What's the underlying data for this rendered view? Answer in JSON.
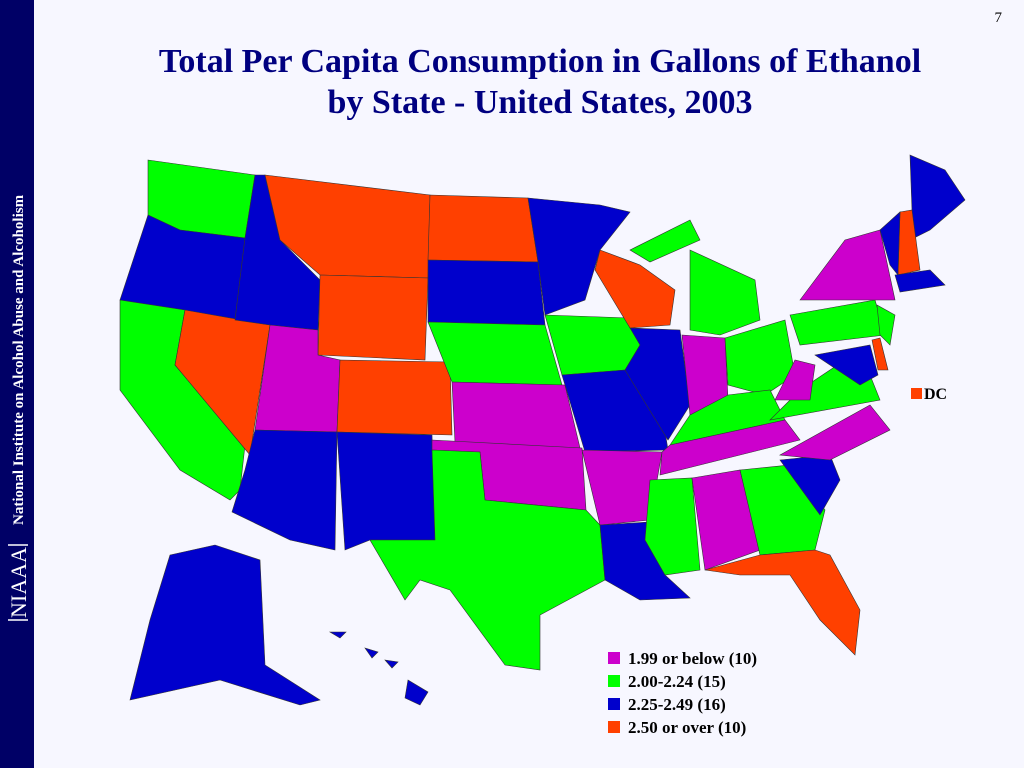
{
  "page_number": "7",
  "sidebar": {
    "org": "National Institute on Alcohol Abuse and Alcoholism",
    "logo": "NIAAA"
  },
  "title_lines": [
    "Total Per Capita Consumption in Gallons of Ethanol",
    "by State - United States, 2003"
  ],
  "dc": {
    "label": "DC",
    "category": 3
  },
  "legend": [
    {
      "label": "1.99 or below (10)",
      "color": "#cc00cc"
    },
    {
      "label": "2.00-2.24 (15)",
      "color": "#00ff00"
    },
    {
      "label": "2.25-2.49 (16)",
      "color": "#0000cc"
    },
    {
      "label": "2.50 or over (10)",
      "color": "#ff4000"
    }
  ]
}
